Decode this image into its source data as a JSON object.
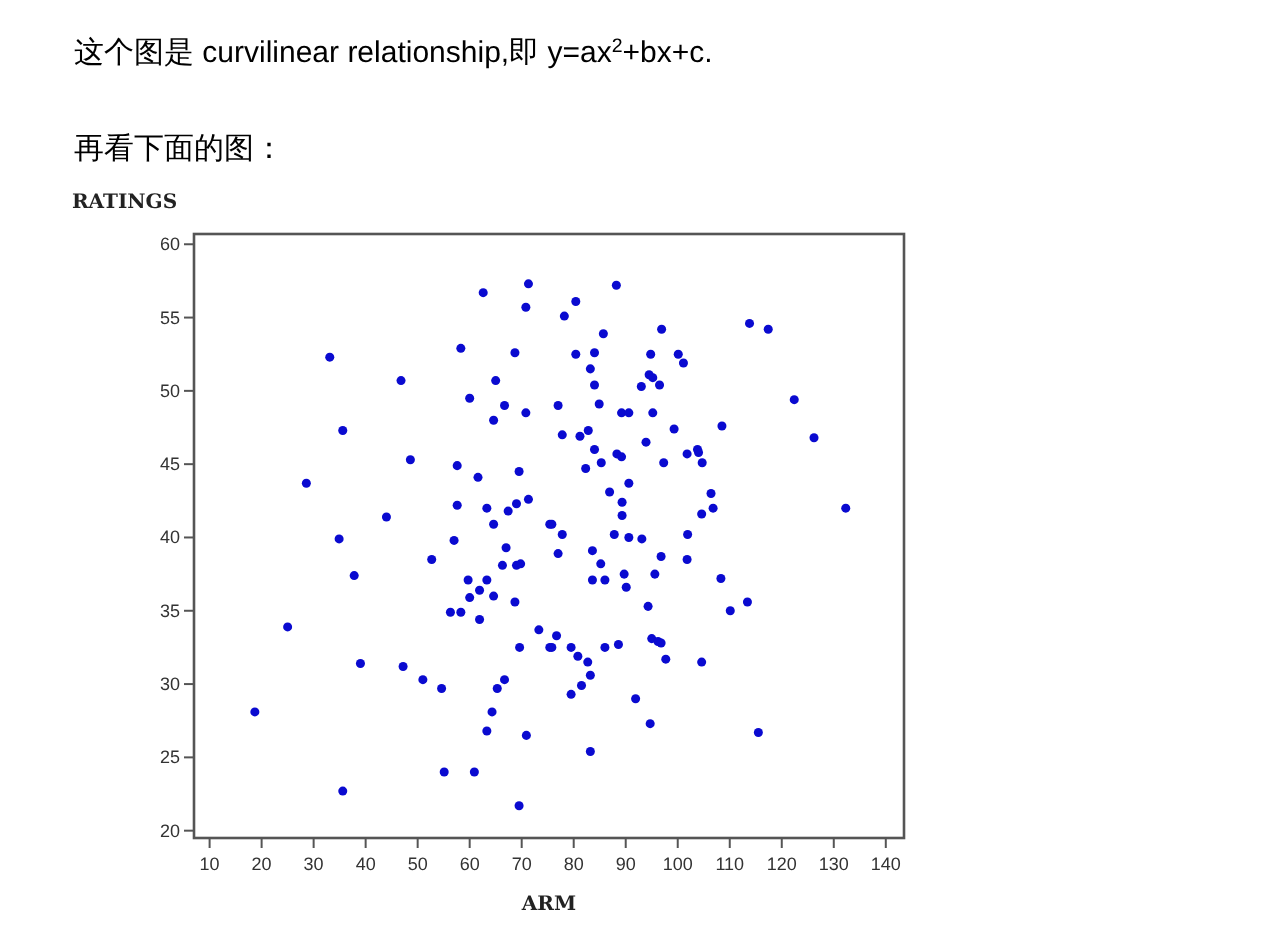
{
  "chart_data": {
    "type": "scatter",
    "title": "这个图是 curvilinear relationship,即 y=ax$^{2}$+bx+c.",
    "subtitle": "再看下面的图：",
    "xlabel": "ARM",
    "ylabel": "RATINGS",
    "marker": "circle",
    "grid": false,
    "xlim": [
      7,
      143.5
    ],
    "ylim": [
      19.5,
      60.7
    ],
    "xticks": [
      10,
      20,
      30,
      40,
      50,
      60,
      70,
      80,
      90,
      100,
      110,
      120,
      130,
      140
    ],
    "yticks": [
      20,
      25,
      30,
      35,
      40,
      45,
      50,
      55,
      60
    ],
    "series": [
      {
        "color": "#0a0ad0",
        "x": [
          62.6,
          71.3,
          70.8,
          33.1,
          58.3,
          68.7,
          46.8,
          65,
          60,
          66.7,
          70.8,
          64.6,
          35.6,
          48.6,
          57.6,
          61.6,
          69.5,
          28.6,
          57.6,
          63.3,
          67.4,
          69,
          71.3,
          44,
          64.6,
          75.4,
          34.9,
          57,
          67,
          52.7,
          66.3,
          69,
          69.8,
          37.8,
          59.7,
          63.3,
          60,
          61.9,
          64.6,
          56.3,
          58.3,
          61.9,
          68.7,
          25,
          73.3,
          69.6,
          75.4,
          39,
          47.2,
          51,
          54.6,
          66.7,
          65.3,
          18.7,
          64.3,
          63.3,
          70.9,
          55.1,
          60.9,
          35.6,
          69.5,
          88.2,
          80.4,
          78.2,
          85.7,
          96.9,
          113.8,
          117.4,
          80.4,
          84,
          94.8,
          100.1,
          101.1,
          83.2,
          94.5,
          95.2,
          96.5,
          93,
          84,
          77,
          84.9,
          89.2,
          90.6,
          95.2,
          122.4,
          108.5,
          99.3,
          77.8,
          81.2,
          82.8,
          126.2,
          93.9,
          84,
          88.3,
          89.2,
          103.8,
          104,
          101.8,
          104.7,
          97.3,
          85.3,
          82.3,
          90.6,
          86.9,
          106.4,
          89.3,
          106.8,
          104.6,
          89.3,
          132.3,
          75.8,
          77.8,
          87.8,
          90.6,
          93.1,
          101.9,
          77,
          83.6,
          85.2,
          89.7,
          90.1,
          96.8,
          95.6,
          101.8,
          83.6,
          86,
          108.3,
          94.3,
          110.1,
          113.4,
          76.7,
          75.8,
          79.5,
          80.8,
          82.7,
          83.2,
          81.5,
          79.5,
          86,
          88.6,
          95,
          96.2,
          96.8,
          97.7,
          104.6,
          91.9,
          94.7,
          115.5,
          83.2
        ],
        "values": [
          56.7,
          57.3,
          55.7,
          52.3,
          52.9,
          52.6,
          50.7,
          50.7,
          49.5,
          49,
          48.5,
          48,
          47.3,
          45.3,
          44.9,
          44.1,
          44.5,
          43.7,
          42.2,
          42,
          41.8,
          42.3,
          42.6,
          41.4,
          40.9,
          40.9,
          39.9,
          39.8,
          39.3,
          38.5,
          38.1,
          38.1,
          38.2,
          37.4,
          37.1,
          37.1,
          35.9,
          36.4,
          36,
          34.9,
          34.9,
          34.4,
          35.6,
          33.9,
          33.7,
          32.5,
          32.5,
          31.4,
          31.2,
          30.3,
          29.7,
          30.3,
          29.7,
          28.1,
          28.1,
          26.8,
          26.5,
          24,
          24,
          22.7,
          21.7,
          57.2,
          56.1,
          55.1,
          53.9,
          54.2,
          54.6,
          54.2,
          52.5,
          52.6,
          52.5,
          52.5,
          51.9,
          51.5,
          51.1,
          50.9,
          50.4,
          50.3,
          50.4,
          49,
          49.1,
          48.5,
          48.5,
          48.5,
          49.4,
          47.6,
          47.4,
          47,
          46.9,
          47.3,
          46.8,
          46.5,
          46,
          45.7,
          45.5,
          46,
          45.8,
          45.7,
          45.1,
          45.1,
          45.1,
          44.7,
          43.7,
          43.1,
          43,
          42.4,
          42,
          41.6,
          41.5,
          42,
          40.9,
          40.2,
          40.2,
          40,
          39.9,
          40.2,
          38.9,
          39.1,
          38.2,
          37.5,
          36.6,
          38.7,
          37.5,
          38.5,
          37.1,
          37.1,
          37.2,
          35.3,
          35,
          35.6,
          33.3,
          32.5,
          32.5,
          31.9,
          31.5,
          30.6,
          29.9,
          29.3,
          32.5,
          32.7,
          33.1,
          32.9,
          32.8,
          31.7,
          31.5,
          29,
          27.3,
          26.7,
          25.4
        ]
      }
    ]
  }
}
